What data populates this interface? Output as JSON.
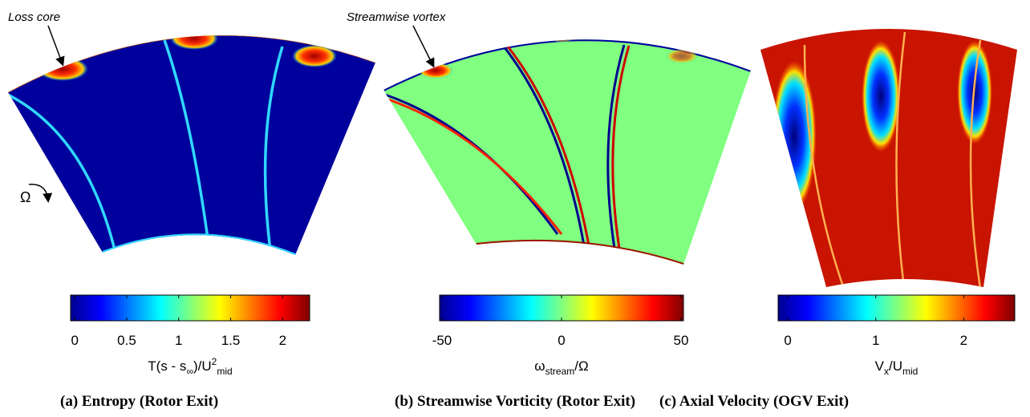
{
  "rotation_symbol": "Ω",
  "panels": [
    {
      "annotation": "Loss core",
      "colorbar": {
        "lim": [
          -0.04,
          2.26
        ],
        "ticks": [
          0,
          0.5,
          1,
          1.5,
          2
        ],
        "label": [
          {
            "text": "T(s - s"
          },
          {
            "sub": "∞"
          },
          {
            "text": ")/U"
          },
          {
            "sup": "2"
          },
          {
            "sub": "mid"
          }
        ]
      },
      "caption": "(a) Entropy (Rotor Exit)"
    },
    {
      "annotation": "Streamwise vortex",
      "colorbar": {
        "lim": [
          -51,
          51
        ],
        "ticks": [
          -50,
          0,
          50
        ],
        "label": [
          {
            "text": "ω"
          },
          {
            "sub": "stream"
          },
          {
            "text": "/Ω"
          }
        ]
      },
      "caption": "(b) Streamwise Vorticity (Rotor Exit)"
    },
    {
      "colorbar": {
        "lim": [
          -0.11,
          2.58
        ],
        "ticks": [
          0,
          1,
          2
        ],
        "label": [
          {
            "text": "V"
          },
          {
            "sub": "x"
          },
          {
            "text": "/U"
          },
          {
            "sub": "mid"
          }
        ]
      },
      "caption": "(c) Axial Velocity (OGV Exit)"
    }
  ]
}
